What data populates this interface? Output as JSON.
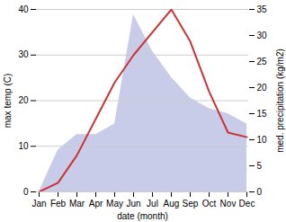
{
  "chart_data": {
    "type": "line",
    "xlabel": "date (month)",
    "ylabel": "max temp (C)",
    "y2label": "med. precipitation (kg/m2)",
    "categories": [
      "Jan",
      "Feb",
      "Mar",
      "Apr",
      "May",
      "Jun",
      "Jul",
      "Aug",
      "Sep",
      "Oct",
      "Nov",
      "Dec"
    ],
    "series": [
      {
        "type": "area",
        "axis": "y2",
        "color": "#c8cce8",
        "values": [
          0,
          8,
          11,
          11,
          13,
          34,
          27,
          22,
          18,
          16,
          15,
          13
        ]
      },
      {
        "type": "line",
        "color": "#cc3333",
        "values": [
          0,
          2,
          8,
          16,
          24,
          30,
          35,
          40,
          33,
          22,
          13,
          12
        ]
      }
    ],
    "ylim": [
      0,
      40
    ],
    "yticks": [
      0,
      10,
      20,
      30,
      40
    ],
    "y2lim": [
      0,
      35
    ],
    "y2ticks": [
      0,
      5,
      10,
      15,
      20,
      25,
      30,
      35
    ],
    "grid": true
  }
}
